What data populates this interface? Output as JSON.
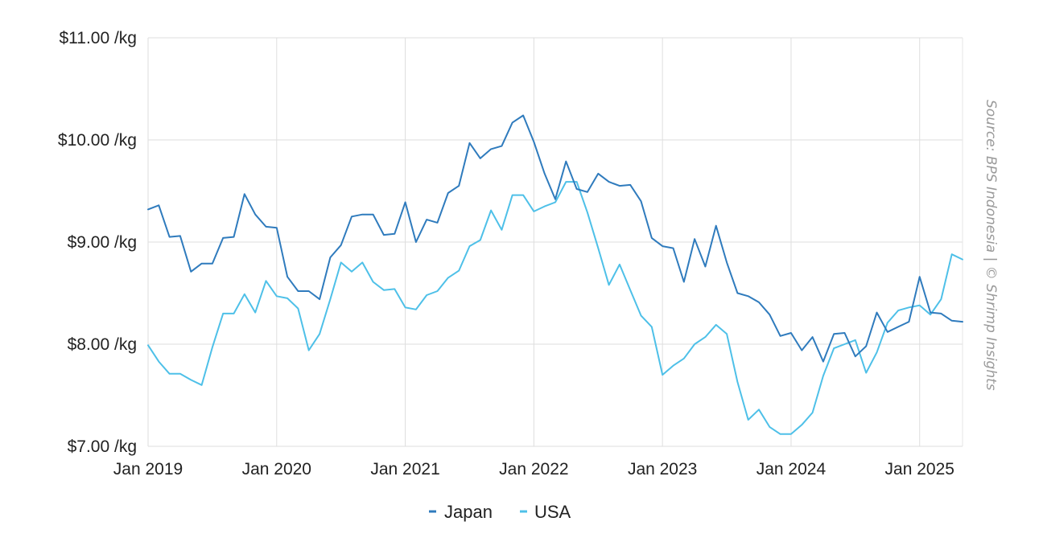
{
  "chart_data": {
    "type": "line",
    "y_unit_suffix": " /kg",
    "ylim": [
      7,
      11
    ],
    "y_ticks": [
      "$7.00 /kg",
      "$8.00 /kg",
      "$9.00 /kg",
      "$10.00 /kg",
      "$11.00 /kg"
    ],
    "x_ticks": [
      "Jan 2019",
      "Jan 2020",
      "Jan 2021",
      "Jan 2022",
      "Jan 2023",
      "Jan 2024",
      "Jan 2025"
    ],
    "x_start": "2019-01",
    "x_end": "2025-05",
    "grid": true,
    "legend_position": "bottom-center",
    "source_note": "Source: BPS Indonesia | © Shrimp Insights",
    "series": [
      {
        "name": "Japan",
        "color": "#2f7bbd",
        "values": [
          9.32,
          9.36,
          9.05,
          9.06,
          8.71,
          8.79,
          8.79,
          9.04,
          9.05,
          9.47,
          9.27,
          9.15,
          9.14,
          8.66,
          8.52,
          8.52,
          8.44,
          8.85,
          8.97,
          9.25,
          9.27,
          9.27,
          9.07,
          9.08,
          9.39,
          9.0,
          9.22,
          9.19,
          9.48,
          9.55,
          9.97,
          9.82,
          9.91,
          9.94,
          10.17,
          10.24,
          9.98,
          9.67,
          9.42,
          9.79,
          9.52,
          9.49,
          9.67,
          9.59,
          9.55,
          9.56,
          9.4,
          9.04,
          8.96,
          8.94,
          8.61,
          9.03,
          8.76,
          9.16,
          8.8,
          8.5,
          8.47,
          8.41,
          8.29,
          8.08,
          8.11,
          7.94,
          8.07,
          7.83,
          8.1,
          8.11,
          7.88,
          7.98,
          8.31,
          8.12,
          8.17,
          8.22,
          8.66,
          8.31,
          8.3,
          8.23,
          8.22
        ]
      },
      {
        "name": "USA",
        "color": "#4ec0e8",
        "values": [
          7.99,
          7.83,
          7.71,
          7.71,
          7.65,
          7.6,
          7.97,
          8.3,
          8.3,
          8.49,
          8.31,
          8.62,
          8.47,
          8.45,
          8.35,
          7.94,
          8.1,
          8.44,
          8.8,
          8.71,
          8.8,
          8.61,
          8.53,
          8.54,
          8.36,
          8.34,
          8.48,
          8.52,
          8.65,
          8.72,
          8.96,
          9.02,
          9.31,
          9.12,
          9.46,
          9.46,
          9.3,
          9.35,
          9.39,
          9.59,
          9.59,
          9.29,
          8.94,
          8.58,
          8.78,
          8.53,
          8.28,
          8.17,
          7.7,
          7.79,
          7.86,
          8.0,
          8.07,
          8.19,
          8.1,
          7.63,
          7.26,
          7.36,
          7.19,
          7.12,
          7.12,
          7.21,
          7.33,
          7.69,
          7.96,
          8.0,
          8.04,
          7.72,
          7.92,
          8.21,
          8.33,
          8.36,
          8.38,
          8.29,
          8.44,
          8.88,
          8.83
        ]
      }
    ]
  }
}
